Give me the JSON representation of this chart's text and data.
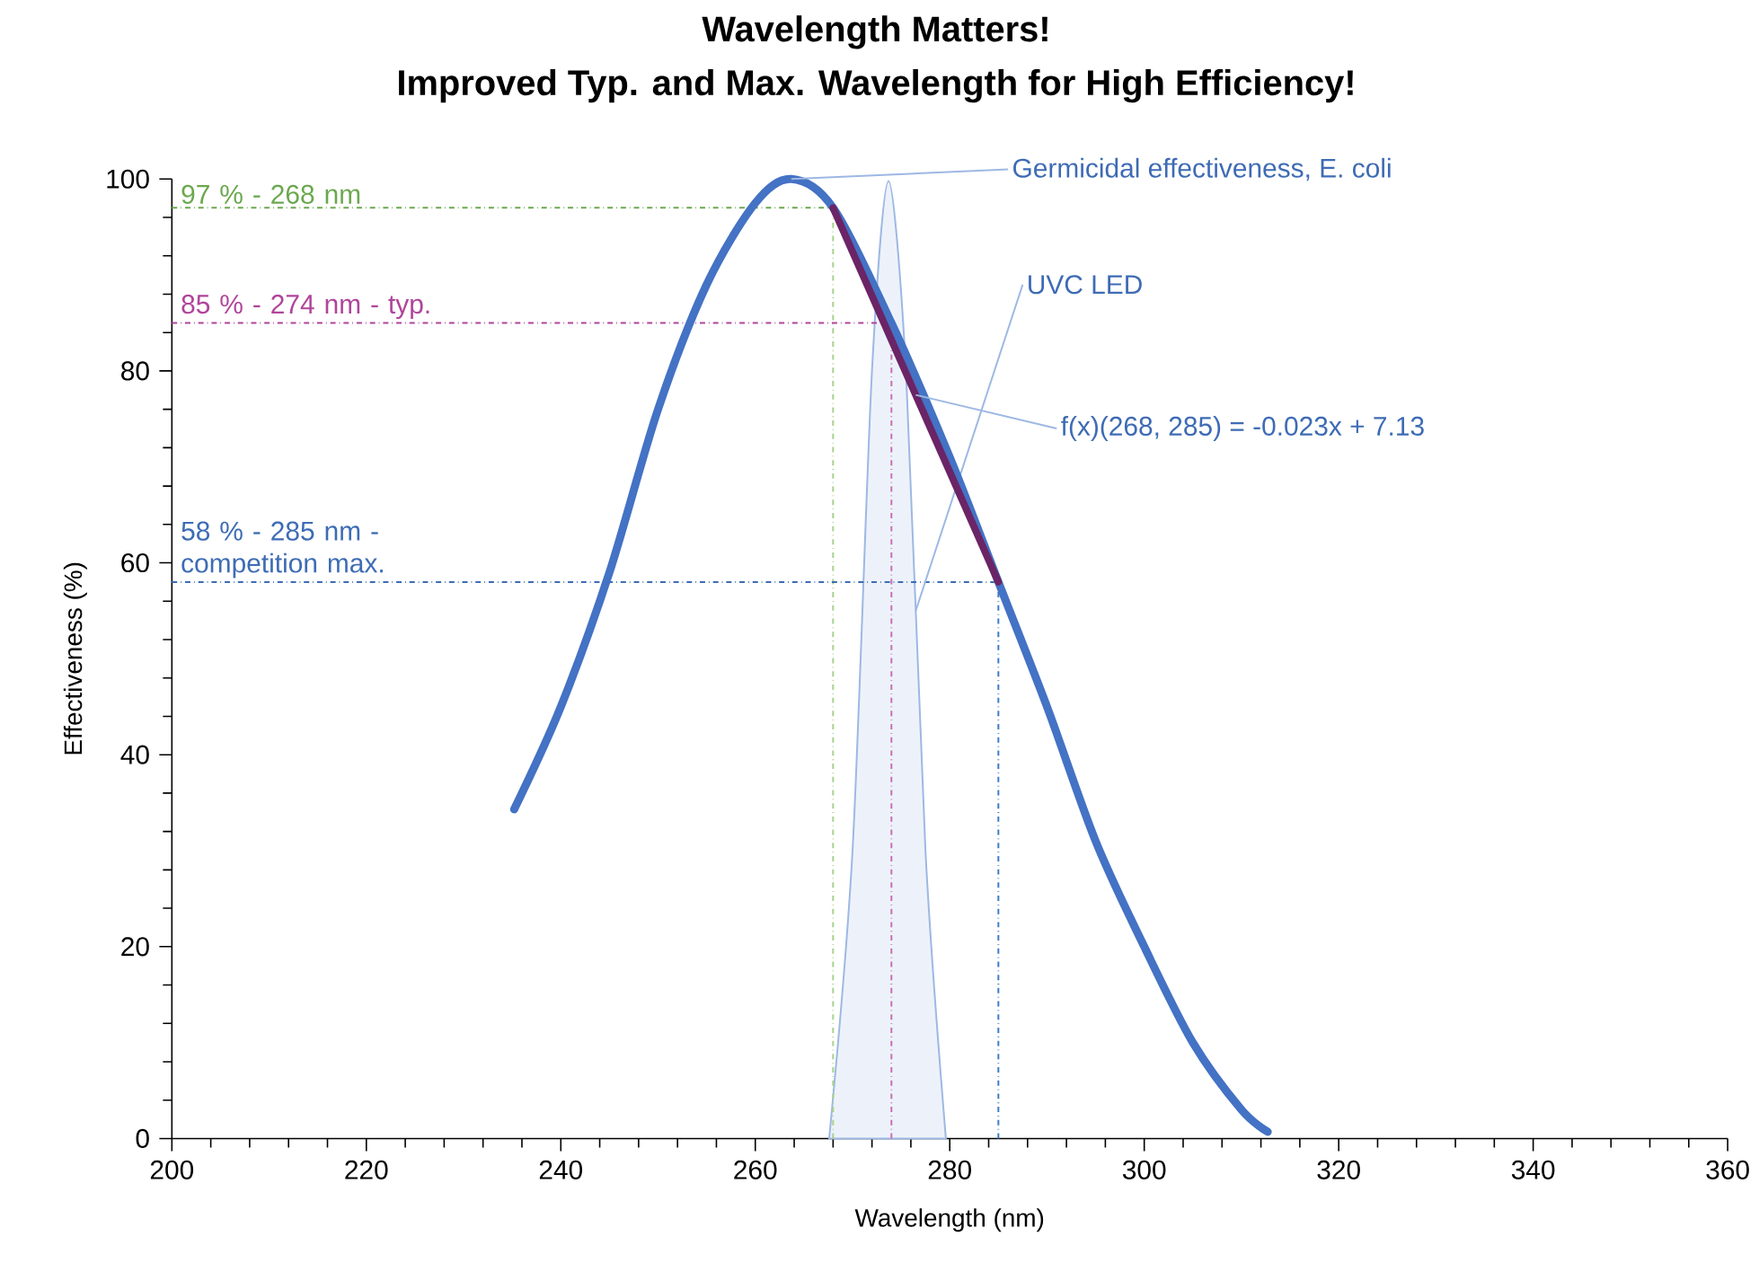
{
  "chart_data": {
    "type": "line",
    "title": "Wavelength Matters!",
    "subtitle": "Improved Typ. and Max. Wavelength for High Efficiency!",
    "xlabel": "Wavelength (nm)",
    "ylabel": "Effectiveness (%)",
    "xlim": [
      200,
      360
    ],
    "xticks": [
      200,
      220,
      240,
      260,
      280,
      300,
      320,
      340,
      360
    ],
    "ylim": [
      0,
      100
    ],
    "yticks": [
      0,
      20,
      40,
      60,
      80,
      100
    ],
    "grid": false,
    "marker": "none",
    "series": [
      {
        "name": "Germicidal effectiveness, E. coli",
        "color": "#4472c4",
        "x": [
          235.2,
          240,
          245,
          250,
          255,
          260,
          263.7,
          268,
          274,
          280,
          285,
          290,
          295,
          300,
          305,
          310,
          312.7
        ],
        "values": [
          34.3,
          45,
          59,
          76,
          89,
          97.5,
          100,
          97,
          85,
          71,
          58,
          45,
          31,
          20,
          10,
          3,
          0.7
        ]
      },
      {
        "name": "UVC LED",
        "type": "area",
        "color": "#9db8e3",
        "x": [
          267.6,
          270,
          272,
          273.7,
          275.5,
          277.5,
          279.6
        ],
        "values": [
          0,
          30,
          80,
          99.8,
          80,
          30,
          0
        ]
      },
      {
        "name": "f(x)(268, 285) = -0.023x + 7.13",
        "color": "#6b2466",
        "x": [
          268,
          285
        ],
        "values": [
          97,
          58
        ]
      }
    ],
    "ref_lines": [
      {
        "axis": "y",
        "value": 97,
        "label": "97 % - 268 nm",
        "color": "#6aa84f",
        "line_style": "dashdot"
      },
      {
        "axis": "x",
        "value": 268,
        "color": "#a9d18e",
        "line_style": "dashdot"
      },
      {
        "axis": "y",
        "value": 85,
        "label": "85 % - 274 nm - typ.",
        "color": "#b0449a",
        "line_style": "dashdot"
      },
      {
        "axis": "x",
        "value": 274,
        "color": "#c86fb4",
        "line_style": "dashdot"
      },
      {
        "axis": "y",
        "value": 58,
        "label": "58 % - 285 nm - competition max.",
        "color": "#3d6cb4",
        "line_style": "dashdot"
      },
      {
        "axis": "x",
        "value": 285,
        "color": "#3d7cc4",
        "line_style": "dashdot"
      }
    ]
  }
}
